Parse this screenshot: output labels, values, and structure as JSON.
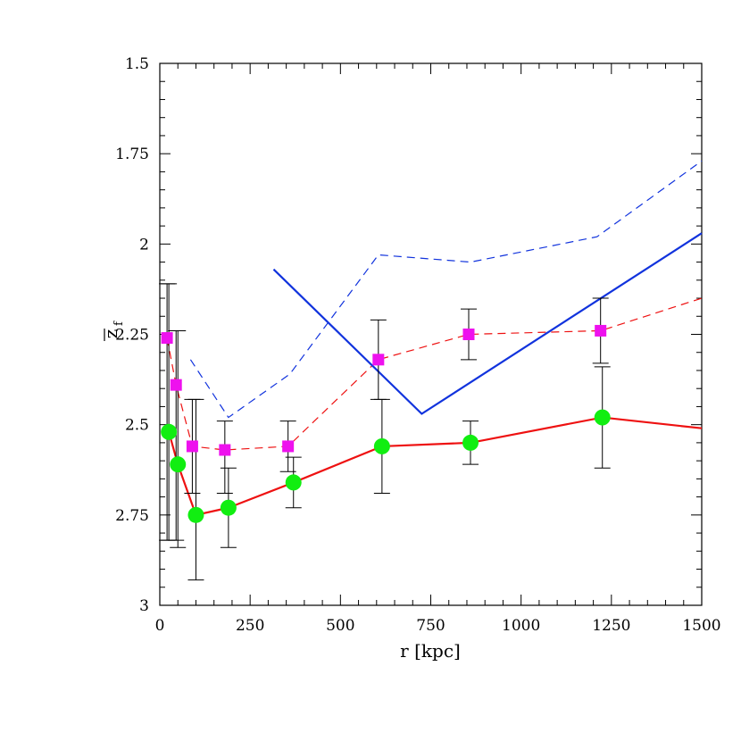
{
  "chart_data": {
    "type": "line",
    "xlabel": "r [kpc]",
    "ylabel": "z",
    "ylabel_sub": "f",
    "xlim": [
      0,
      1500
    ],
    "ylim": [
      3,
      1.5
    ],
    "y_inverted": true,
    "xticks": [
      0,
      250,
      500,
      750,
      1000,
      1250,
      1500
    ],
    "xtick_labels": [
      "0",
      "250",
      "500",
      "750",
      "1000",
      "1250",
      "1500"
    ],
    "yticks": [
      1.5,
      1.75,
      2,
      2.25,
      2.5,
      2.75,
      3
    ],
    "ytick_labels": [
      "1.5",
      "1.75",
      "2",
      "2.25",
      "2.5",
      "2.75",
      "3"
    ],
    "grid": false,
    "series": [
      {
        "style": "solid",
        "color": "#ee1111",
        "marker": "circle",
        "marker_color": "#11ee11",
        "x": [
          25,
          50,
          100,
          190,
          370,
          615,
          860,
          1225,
          1500
        ],
        "y": [
          2.52,
          2.61,
          2.75,
          2.73,
          2.66,
          2.56,
          2.55,
          2.48,
          2.51
        ],
        "marker_count": 8,
        "err_low": [
          2.82,
          2.84,
          2.93,
          2.84,
          2.73,
          2.69,
          2.61,
          2.62
        ],
        "err_high": [
          2.11,
          2.24,
          2.43,
          2.62,
          2.59,
          2.43,
          2.49,
          2.34
        ]
      },
      {
        "style": "dashed",
        "color": "#ee1111",
        "marker": "square",
        "marker_color": "#ee11ee",
        "x": [
          20,
          45,
          90,
          180,
          355,
          605,
          855,
          1220,
          1500
        ],
        "y": [
          2.26,
          2.39,
          2.56,
          2.57,
          2.56,
          2.32,
          2.25,
          2.24,
          2.15
        ],
        "marker_count": 8,
        "err_low": [
          2.82,
          2.82,
          2.69,
          2.69,
          2.63,
          2.43,
          2.32,
          2.33
        ],
        "err_high": [
          2.11,
          2.24,
          2.43,
          2.49,
          2.49,
          2.21,
          2.18,
          2.15
        ]
      },
      {
        "style": "solid",
        "color": "#1133dd",
        "marker": "none",
        "x": [
          315,
          725,
          1500
        ],
        "y": [
          2.07,
          2.47,
          1.97
        ]
      },
      {
        "style": "dashed",
        "color": "#1133dd",
        "marker": "none",
        "x": [
          85,
          190,
          360,
          605,
          860,
          1210,
          1500
        ],
        "y": [
          2.32,
          2.48,
          2.36,
          2.03,
          2.05,
          1.98,
          1.77
        ]
      }
    ]
  }
}
